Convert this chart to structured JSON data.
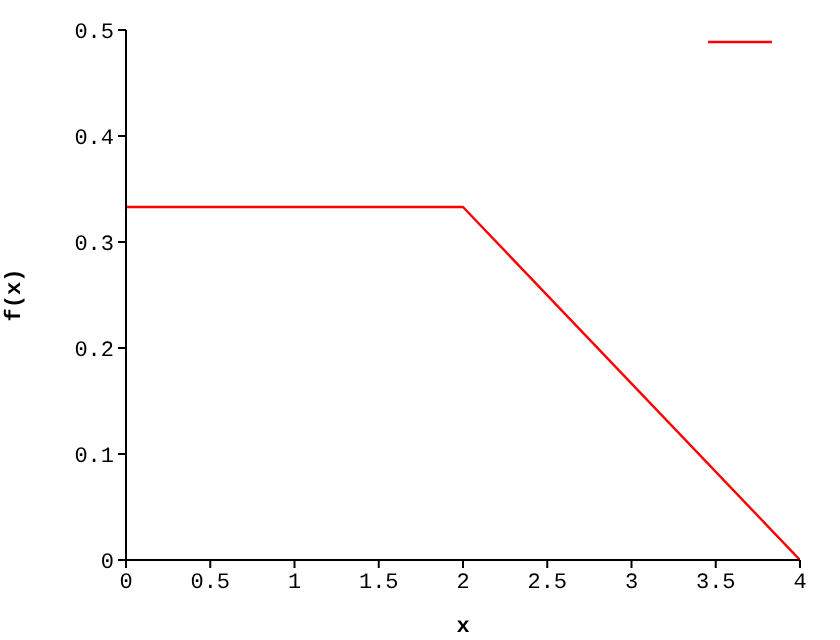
{
  "chart_data": {
    "type": "line",
    "xlabel": "x",
    "ylabel": "f(x)",
    "x": [
      0,
      2,
      4
    ],
    "series": [
      {
        "color": "#ff0000",
        "values": [
          0.333,
          0.333,
          0
        ]
      }
    ],
    "xlim": [
      0,
      4
    ],
    "xticks": [
      0,
      0.5,
      1,
      1.5,
      2,
      2.5,
      3,
      3.5,
      4
    ],
    "ylim": [
      0,
      0.5
    ],
    "yticks": [
      0,
      0.1,
      0.2,
      0.3,
      0.4,
      0.5
    ],
    "grid": false,
    "marker": "none",
    "line_style": "solid"
  }
}
